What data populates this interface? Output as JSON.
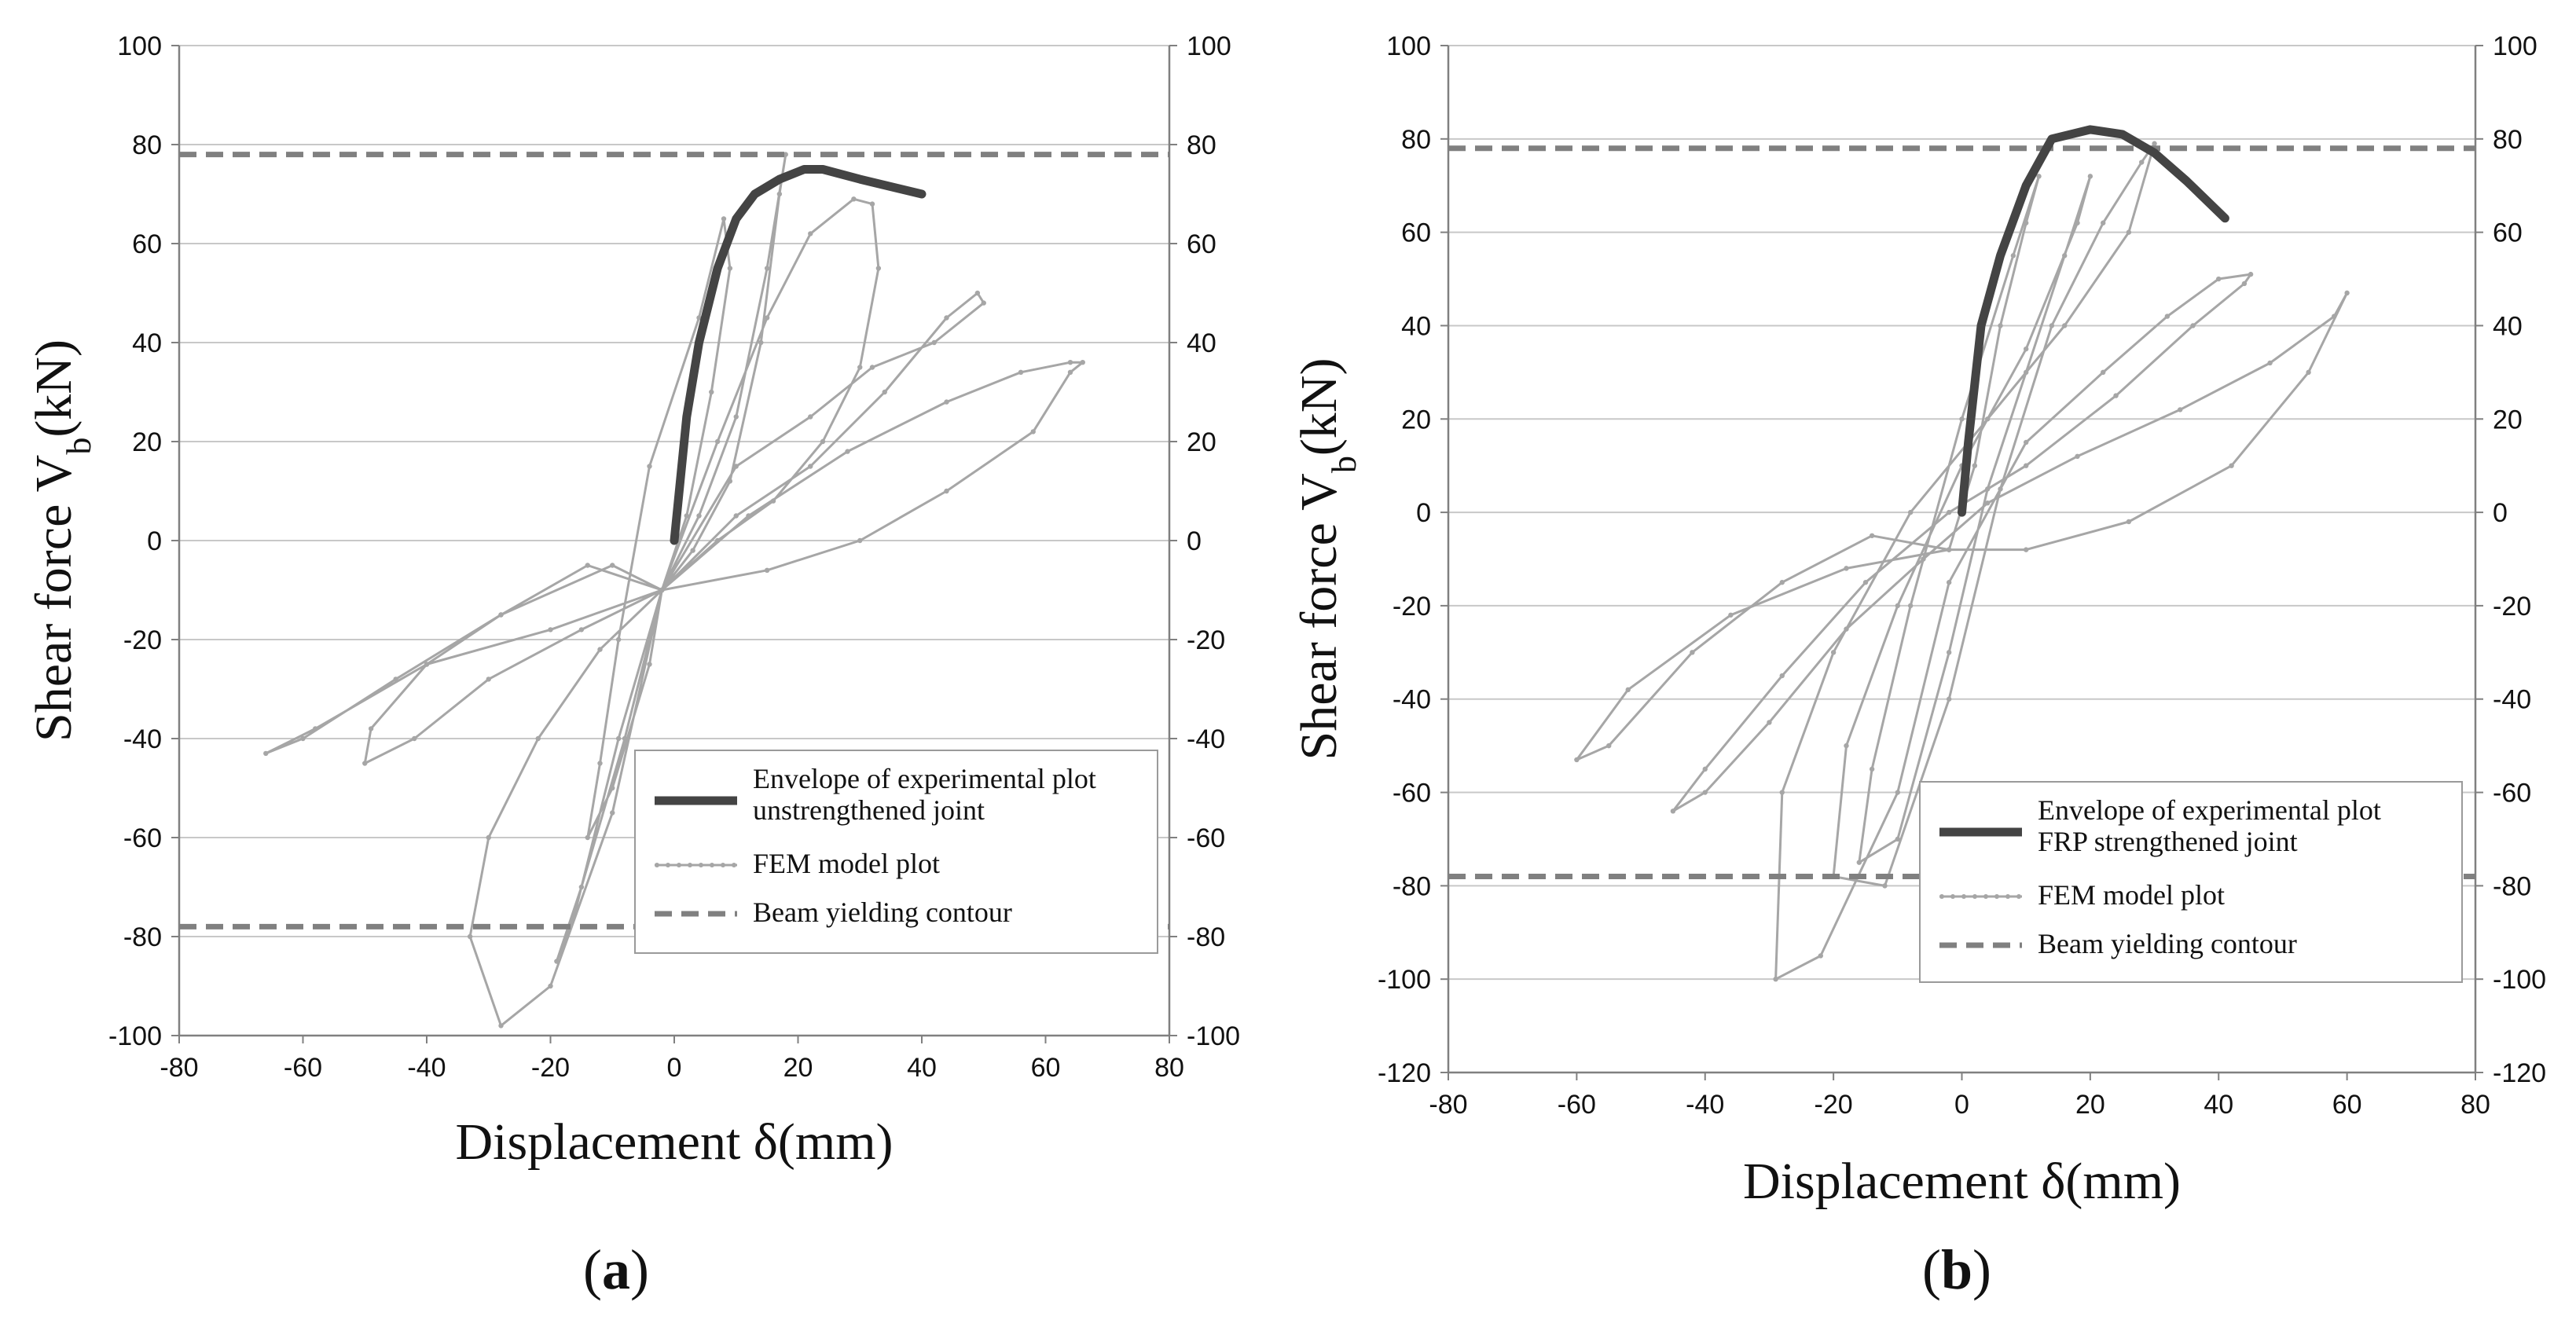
{
  "figure": {
    "panels": [
      {
        "id": "a",
        "label_open": "(",
        "label_letter": "a",
        "label_close": ")"
      },
      {
        "id": "b",
        "label_open": "(",
        "label_letter": "b",
        "label_close": ")"
      }
    ]
  },
  "colors": {
    "envelope": "#444444",
    "fem": "#a6a6a6",
    "yield": "#808080",
    "grid": "#c8c8c8",
    "axis": "#808080"
  },
  "chart_data": [
    {
      "type": "line",
      "panel": "a",
      "xlabel": "Displacement δ(mm)",
      "ylabel_main": "Shear force V",
      "ylabel_sub": "b",
      "ylabel_tail": "(kN)",
      "xlim": [
        -80,
        80
      ],
      "ylim": [
        -100,
        100
      ],
      "x_ticks": [
        -80,
        -60,
        -40,
        -20,
        0,
        20,
        40,
        60,
        80
      ],
      "y_ticks": [
        -100,
        -80,
        -60,
        -40,
        -20,
        0,
        20,
        40,
        60,
        80,
        100
      ],
      "x_tick_labels": [
        "-80",
        "-60",
        "-40",
        "-20",
        "0",
        "20",
        "40",
        "60",
        "80"
      ],
      "y_tick_labels": [
        "-100",
        "-80",
        "-60",
        "-40",
        "-20",
        "0",
        "20",
        "40",
        "60",
        "80",
        "100"
      ],
      "grid": "horizontal",
      "legend": {
        "placement": "bottom-right",
        "entries": [
          {
            "label_line1": "Envelope of experimental plot",
            "label_line2": "unstrengthened joint",
            "style": "envelope"
          },
          {
            "label_line1": "FEM model plot",
            "style": "fem"
          },
          {
            "label_line1": "Beam yielding contour",
            "style": "yield"
          }
        ]
      },
      "series": [
        {
          "name": "Envelope of experimental plot unstrengthened joint",
          "style": "envelope",
          "x": [
            0,
            2,
            4,
            7,
            10,
            13,
            17,
            21,
            24,
            30,
            40
          ],
          "y": [
            0,
            25,
            40,
            55,
            65,
            70,
            73,
            75,
            75,
            73,
            70
          ]
        },
        {
          "name": "Beam yielding contour (positive)",
          "style": "yield",
          "x": [
            -80,
            80
          ],
          "y": [
            78,
            78
          ]
        },
        {
          "name": "Beam yielding contour (negative)",
          "style": "yield",
          "x": [
            -80,
            80
          ],
          "y": [
            -78,
            -78
          ]
        },
        {
          "name": "FEM model plot",
          "style": "fem",
          "x": [
            -2,
            2,
            6,
            9,
            8,
            4,
            -4,
            -9,
            -12,
            -14,
            -10,
            -4,
            -2,
            4,
            10,
            15,
            18,
            17,
            14,
            9,
            3,
            -2,
            -9,
            -16,
            -19,
            -15,
            -8,
            -2,
            7,
            15,
            22,
            29,
            32,
            33,
            30,
            24,
            16,
            7,
            -2,
            -12,
            -22,
            -30,
            -33,
            -28,
            -20,
            -10,
            -2,
            10,
            22,
            32,
            42,
            50,
            49,
            44,
            34,
            22,
            10,
            -2,
            -15,
            -30,
            -42,
            -50,
            -49,
            -40,
            -28,
            -14,
            -2,
            12,
            28,
            44,
            56,
            64,
            66,
            64,
            58,
            44,
            30,
            15,
            -2,
            -20,
            -40,
            -58,
            -66,
            -60,
            -45,
            -28,
            -10,
            -2
          ],
          "y": [
            -10,
            5,
            30,
            55,
            65,
            45,
            15,
            -20,
            -45,
            -60,
            -50,
            -25,
            -10,
            5,
            25,
            55,
            78,
            70,
            40,
            12,
            -2,
            -10,
            -40,
            -75,
            -85,
            -70,
            -40,
            -10,
            20,
            45,
            62,
            69,
            68,
            55,
            35,
            20,
            8,
            0,
            -10,
            -22,
            -40,
            -60,
            -80,
            -98,
            -90,
            -55,
            -10,
            15,
            25,
            35,
            40,
            48,
            50,
            45,
            30,
            15,
            5,
            -10,
            -18,
            -28,
            -40,
            -45,
            -38,
            -25,
            -15,
            -5,
            -10,
            5,
            18,
            28,
            34,
            36,
            36,
            34,
            22,
            10,
            0,
            -6,
            -10,
            -18,
            -25,
            -38,
            -43,
            -40,
            -28,
            -15,
            -5,
            -10
          ]
        }
      ]
    },
    {
      "type": "line",
      "panel": "b",
      "xlabel": "Displacement δ(mm)",
      "ylabel_main": "Shear force V",
      "ylabel_sub": "b",
      "ylabel_tail": "(kN)",
      "xlim": [
        -80,
        80
      ],
      "ylim": [
        -120,
        100
      ],
      "x_ticks": [
        -80,
        -60,
        -40,
        -20,
        0,
        20,
        40,
        60,
        80
      ],
      "y_ticks": [
        -120,
        -100,
        -80,
        -60,
        -40,
        -20,
        0,
        20,
        40,
        60,
        80,
        100
      ],
      "x_tick_labels": [
        "-80",
        "-60",
        "-40",
        "-20",
        "0",
        "20",
        "40",
        "60",
        "80"
      ],
      "y_tick_labels": [
        "-120",
        "-100",
        "-80",
        "-60",
        "-40",
        "-20",
        "0",
        "20",
        "40",
        "60",
        "80",
        "100"
      ],
      "grid": "horizontal",
      "legend": {
        "placement": "bottom-right",
        "entries": [
          {
            "label_line1": "Envelope of experimental plot",
            "label_line2": "FRP strengthened joint",
            "style": "envelope"
          },
          {
            "label_line1": "FEM model plot",
            "style": "fem"
          },
          {
            "label_line1": "Beam yielding contour",
            "style": "yield"
          }
        ]
      },
      "series": [
        {
          "name": "Envelope of experimental plot FRP strengthened joint",
          "style": "envelope",
          "x": [
            0,
            1,
            3,
            6,
            10,
            14,
            20,
            25,
            30,
            35,
            41
          ],
          "y": [
            0,
            15,
            40,
            55,
            70,
            80,
            82,
            81,
            77,
            71,
            63
          ]
        },
        {
          "name": "Beam yielding contour (positive)",
          "style": "yield",
          "x": [
            -80,
            80
          ],
          "y": [
            78,
            78
          ]
        },
        {
          "name": "Beam yielding contour (negative)",
          "style": "yield",
          "x": [
            -80,
            80
          ],
          "y": [
            -78,
            -78
          ]
        },
        {
          "name": "FEM model plot",
          "style": "fem",
          "x": [
            -2,
            2,
            6,
            10,
            12,
            8,
            0,
            -8,
            -14,
            -16,
            -10,
            -2,
            4,
            10,
            16,
            20,
            18,
            10,
            0,
            -10,
            -18,
            -20,
            -12,
            -2,
            6,
            14,
            22,
            28,
            30,
            26,
            16,
            4,
            -8,
            -20,
            -28,
            -29,
            -22,
            -10,
            -2,
            10,
            22,
            32,
            40,
            45,
            44,
            36,
            24,
            10,
            -2,
            -15,
            -28,
            -40,
            -45,
            -40,
            -30,
            -18,
            -6,
            4,
            18,
            34,
            48,
            58,
            60,
            54,
            42,
            26,
            10,
            -2,
            -18,
            -36,
            -52,
            -60,
            -55,
            -42,
            -28,
            -14,
            -2
          ],
          "y": [
            -8,
            10,
            40,
            62,
            72,
            55,
            20,
            -20,
            -55,
            -75,
            -70,
            -30,
            5,
            30,
            55,
            72,
            62,
            35,
            10,
            -20,
            -50,
            -78,
            -80,
            -40,
            5,
            40,
            62,
            75,
            79,
            60,
            40,
            20,
            0,
            -30,
            -60,
            -100,
            -95,
            -60,
            -15,
            15,
            30,
            42,
            50,
            51,
            49,
            40,
            25,
            10,
            0,
            -15,
            -35,
            -55,
            -64,
            -60,
            -45,
            -25,
            -10,
            2,
            12,
            22,
            32,
            42,
            47,
            30,
            10,
            -2,
            -8,
            -8,
            -12,
            -22,
            -38,
            -53,
            -50,
            -30,
            -15,
            -5,
            -8
          ]
        }
      ]
    }
  ]
}
